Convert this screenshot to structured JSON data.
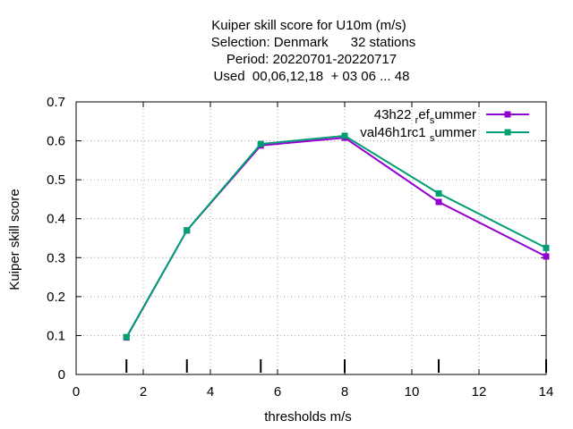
{
  "chart_data": {
    "type": "line",
    "title_lines": [
      "Kuiper skill score  for U10m (m/s)",
      "Selection: Denmark      32 stations",
      "Period: 20220701-20220717",
      "Used  00,06,12,18  + 03 06 ... 48"
    ],
    "xlabel": "thresholds m/s",
    "ylabel": "Kuiper skill score",
    "xlim": [
      0,
      14
    ],
    "ylim": [
      0,
      0.7
    ],
    "xticks": [
      "0",
      "2",
      "4",
      "6",
      "8",
      "10",
      "12",
      "14"
    ],
    "yticks": [
      "0",
      "0.1",
      "0.2",
      "0.3",
      "0.4",
      "0.5",
      "0.6",
      "0.7"
    ],
    "grid": true,
    "legend_position": "top-right",
    "threshold_markers": [
      1.5,
      3.3,
      5.5,
      8,
      10.8,
      14
    ],
    "series": [
      {
        "name": "43h22 ref summer",
        "legend_parts": [
          "43h22 ",
          "r",
          "ef",
          "s",
          "ummer"
        ],
        "color": "#9400d3",
        "x": [
          1.5,
          3.3,
          5.5,
          8,
          10.8,
          14
        ],
        "y": [
          0.095,
          0.37,
          0.588,
          0.608,
          0.443,
          0.303
        ]
      },
      {
        "name": "val46h1rc1 summer",
        "legend_parts": [
          "val46h1rc1 ",
          "s",
          "ummer"
        ],
        "color": "#009e73",
        "x": [
          1.5,
          3.3,
          5.5,
          8,
          10.8,
          14
        ],
        "y": [
          0.096,
          0.37,
          0.592,
          0.613,
          0.465,
          0.325
        ]
      }
    ]
  }
}
